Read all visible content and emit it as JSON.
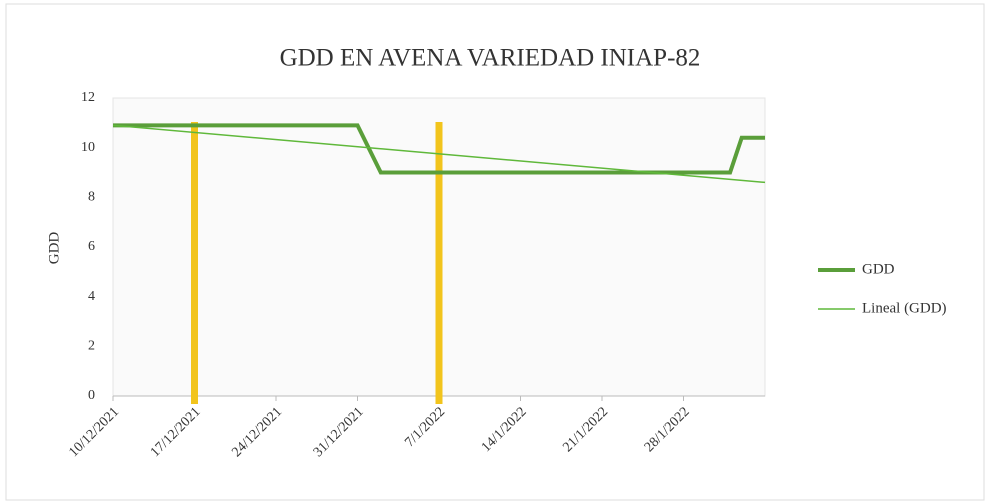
{
  "chart_data": {
    "type": "line",
    "title": "GDD EN AVENA VARIEDAD INIAP-82",
    "y_label": "GDD",
    "xlim": [
      "10/12/2021",
      "4/2/2022"
    ],
    "xticks": [
      "10/12/2021",
      "17/12/2021",
      "24/12/2021",
      "31/12/2021",
      "7/1/2022",
      "14/1/2022",
      "21/1/2022",
      "28/1/2022"
    ],
    "ylim": [
      0,
      12
    ],
    "yticks": [
      0,
      2,
      4,
      6,
      8,
      10,
      12
    ],
    "series": [
      {
        "name": "GDD",
        "color": "#5a9e3a",
        "width": 4,
        "x": [
          "10/12/2021",
          "31/12/2021",
          "2/1/2022",
          "1/2/2022",
          "2/2/2022",
          "4/2/2022"
        ],
        "values": [
          10.9,
          10.9,
          9,
          9,
          10.4,
          10.4
        ]
      },
      {
        "name": "Lineal (GDD)",
        "color": "#5fb83a",
        "width": 1.5,
        "x": [
          "10/12/2021",
          "4/2/2022"
        ],
        "values": [
          10.9,
          8.6
        ]
      }
    ],
    "vertical_markers": [
      {
        "x": "17/12/2021",
        "color": "#f2c41c"
      },
      {
        "x": "7/1/2022",
        "color": "#f2c41c"
      }
    ],
    "legend": "right"
  }
}
